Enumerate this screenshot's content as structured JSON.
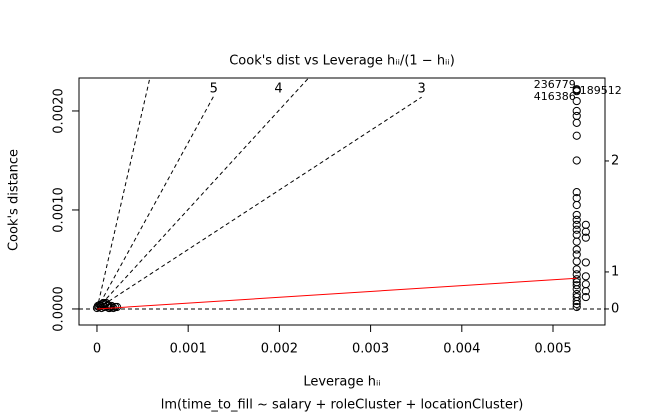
{
  "chart_data": {
    "type": "scatter",
    "title": "Cook's dist vs Leverage  hᵢᵢ/(1 − hᵢᵢ)",
    "xlabel": "Leverage  hᵢᵢ",
    "ylabel": "Cook's distance",
    "subtitle": "lm(time_to_fill ~ salary + roleCluster + locationCluster)",
    "xlim": [
      -0.000197,
      0.00557
    ],
    "ylim": [
      -0.000162,
      0.002333
    ],
    "xticks": [
      0,
      0.001,
      0.002,
      0.003,
      0.004,
      0.005
    ],
    "yticks": [
      {
        "value": 0,
        "label": "0.0000"
      },
      {
        "value": 0.001,
        "label": "0.0010"
      },
      {
        "value": 0.002,
        "label": "0.0020"
      }
    ],
    "points": {
      "color": "#000000",
      "x": [
        0,
        2e-05,
        4e-05,
        5e-05,
        6e-05,
        8e-05,
        0.0001,
        0.00011,
        0.00012,
        0.00013,
        0.00015,
        0.00016,
        0.00018,
        0.0002,
        0.00022,
        3e-05,
        7e-05,
        9e-05,
        0.00014,
        1e-05,
        0.00526,
        0.00526,
        0.00526,
        0.00526,
        0.00526,
        0.00526,
        0.00526,
        0.00526,
        0.00526,
        0.00526,
        0.00526,
        0.00526,
        0.00526,
        0.00526,
        0.00526,
        0.00526,
        0.00526,
        0.00526,
        0.00526,
        0.00526,
        0.00526,
        0.00526,
        0.00526,
        0.00526,
        0.00526,
        0.00526,
        0.00526,
        0.00526,
        0.00526,
        0.00526,
        0.00526,
        0.00526,
        0.00536,
        0.00536,
        0.00536,
        0.00536,
        0.00536,
        0.00536,
        0.00536,
        0.00536
      ],
      "y": [
        1e-05,
        2e-05,
        3e-05,
        1e-05,
        5e-05,
        2e-05,
        6e-05,
        3e-05,
        4e-05,
        1e-05,
        2e-05,
        3e-05,
        1e-05,
        2e-05,
        2e-05,
        4e-05,
        6e-05,
        5e-05,
        1e-05,
        3e-05,
        0.00222,
        0.00221,
        0.0022,
        0.0021,
        0.002,
        0.00195,
        0.00188,
        0.00175,
        0.0015,
        0.00118,
        0.00112,
        0.00105,
        0.00095,
        0.0009,
        0.00085,
        0.0008,
        0.00075,
        0.00068,
        0.0006,
        0.00055,
        0.00048,
        0.0004,
        0.00035,
        0.0003,
        0.00027,
        0.00024,
        0.0002,
        0.00015,
        0.00012,
        8e-05,
        5e-05,
        2e-05,
        0.00085,
        0.00078,
        0.00072,
        0.00047,
        0.00033,
        0.00025,
        0.00018,
        0.00012
      ]
    },
    "smooth": {
      "color": "#ff0000",
      "x": [
        0,
        0.00526
      ],
      "y": [
        0,
        0.00031
      ]
    },
    "contours": [
      {
        "x": [
          0,
          0.00058
        ],
        "y": [
          0,
          0.002333
        ]
      },
      {
        "label": "5",
        "x": [
          0,
          0.00128
        ],
        "y": [
          0,
          0.00215
        ]
      },
      {
        "label": "4",
        "x": [
          0,
          0.00232
        ],
        "y": [
          0,
          0.002333
        ]
      },
      {
        "label": "3",
        "x": [
          0,
          0.00356
        ],
        "y": [
          0,
          0.00214
        ]
      }
    ],
    "label_positions": [
      0.00128,
      0.00199,
      0.00356
    ],
    "reference_y": 0,
    "right_labels": [
      {
        "label": "2",
        "value": 0.001495
      },
      {
        "label": "1",
        "value": 0.000374
      },
      {
        "label": "0",
        "value": 0
      }
    ],
    "point_labels": [
      {
        "text": "236779",
        "x": 0.00526,
        "y": 0.00222
      },
      {
        "text": "416386",
        "x": 0.00526,
        "y": 0.00216
      },
      {
        "text": "189512",
        "x": 0.00526,
        "y": 0.0022
      }
    ]
  }
}
